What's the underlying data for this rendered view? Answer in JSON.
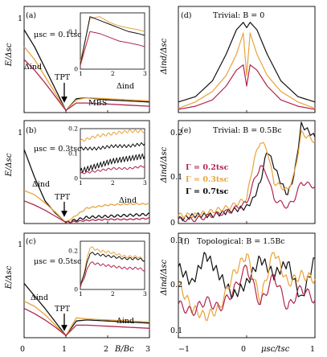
{
  "colors": {
    "black": "#111111",
    "red": "#b0264e",
    "orange": "#e8a33a"
  },
  "left_panels": [
    {
      "label": "(a)",
      "mu": "μsc = 0.1tsc",
      "ylabel": "E/Δsc",
      "ymax": 1.0,
      "delta_label": "Δind",
      "delta_label2": "Δind",
      "mbs_label": "MBS",
      "tpt_label": "TPT",
      "inset_ylim": [
        0,
        0.15
      ],
      "inset_yticks": [
        "0",
        "0.1"
      ],
      "inset_xticks": [
        "1",
        "2",
        "3"
      ],
      "inset": {
        "x": [
          1.0,
          1.3,
          1.6,
          1.9,
          2.2,
          2.5,
          2.8,
          3.0
        ],
        "black": [
          0.01,
          0.14,
          0.13,
          0.12,
          0.11,
          0.1,
          0.095,
          0.09
        ],
        "orange": [
          0.02,
          0.135,
          0.14,
          0.125,
          0.115,
          0.11,
          0.105,
          0.1
        ],
        "red": [
          0.01,
          0.1,
          0.095,
          0.085,
          0.075,
          0.07,
          0.065,
          0.06
        ]
      }
    },
    {
      "label": "(b)",
      "mu": "μsc = 0.3tsc",
      "ylabel": "E/Δsc",
      "ymax": 1.0,
      "delta_label": "Δind",
      "delta_label2": "Δind",
      "mbs_label": "",
      "tpt_label": "TPT",
      "inset_ylim": [
        0,
        0.2
      ],
      "inset_yticks": [
        "0",
        "0.1",
        "0.2"
      ],
      "inset_xticks": [
        "1",
        "2",
        "3"
      ],
      "inset": {
        "x": [
          1.0,
          1.5,
          2.0,
          2.5,
          3.0
        ],
        "black_hi": [
          0.12,
          0.12,
          0.13,
          0.13,
          0.14
        ],
        "black_lo": [
          0.03,
          0.05,
          0.07,
          0.08,
          0.09
        ],
        "orange": [
          0.15,
          0.17,
          0.18,
          0.19,
          0.19
        ],
        "red": [
          0.02,
          0.03,
          0.04,
          0.04,
          0.05
        ]
      }
    },
    {
      "label": "(c)",
      "mu": "μsc = 0.5tsc",
      "ylabel": "E/Δsc",
      "ymax": 1.0,
      "delta_label": "Δind",
      "delta_label2": "Δind",
      "mbs_label": "",
      "tpt_label": "TPT",
      "inset_ylim": [
        0,
        0.25
      ],
      "inset_yticks": [
        "0",
        "0.2"
      ],
      "inset_xticks": [
        "1",
        "2",
        "3"
      ],
      "inset": {
        "x": [
          1.0,
          1.3,
          1.6,
          2.0,
          2.4,
          2.8,
          3.0
        ],
        "black": [
          0.01,
          0.19,
          0.18,
          0.17,
          0.16,
          0.16,
          0.15
        ],
        "orange": [
          0.01,
          0.22,
          0.2,
          0.19,
          0.17,
          0.17,
          0.15
        ],
        "red": [
          0.01,
          0.14,
          0.13,
          0.12,
          0.11,
          0.11,
          0.1
        ]
      }
    }
  ],
  "left_axis": {
    "xticks": [
      "0",
      "1",
      "2",
      "3"
    ],
    "xlabel": "B/Bc",
    "yticks": [
      "0",
      "1"
    ]
  },
  "right_panels": [
    {
      "label": "(d)",
      "title": "Trivial: B = 0",
      "ylabel": "Δind/Δsc",
      "yticks": [],
      "legend": []
    },
    {
      "label": "(e)",
      "title": "Trivial: B = 0.5Bc",
      "ylabel": "Δind/Δsc",
      "yticks": [
        "0.2",
        "0.1",
        "0"
      ],
      "legend": [
        "Γ = 0.2tsc",
        "Γ = 0.3tsc",
        "Γ = 0.7tsc"
      ]
    },
    {
      "label": "(f)",
      "title": "Topological: B = 1.5Bc",
      "ylabel": "Δind/Δsc",
      "yticks": [
        "0.3",
        "0.2",
        "0.1"
      ],
      "legend": []
    }
  ],
  "right_axis": {
    "xticks": [
      "−1",
      "0",
      "1"
    ],
    "xlabel": "μsc/tsc"
  },
  "chart_data": [
    {
      "type": "line",
      "title": "(a) μsc = 0.1tsc",
      "xlabel": "B/Bc",
      "ylabel": "E/Δsc",
      "xlim": [
        0,
        3
      ],
      "ylim": [
        0,
        1
      ],
      "x": [
        0,
        0.25,
        0.5,
        0.75,
        1.0,
        1.25,
        1.5,
        2.0,
        2.5,
        3.0
      ],
      "series": [
        {
          "name": "black",
          "values": [
            0.78,
            0.62,
            0.42,
            0.22,
            0.02,
            0.13,
            0.14,
            0.12,
            0.11,
            0.1
          ]
        },
        {
          "name": "orange",
          "values": [
            0.62,
            0.5,
            0.34,
            0.18,
            0.02,
            0.12,
            0.14,
            0.13,
            0.12,
            0.11
          ]
        },
        {
          "name": "red",
          "values": [
            0.5,
            0.4,
            0.28,
            0.15,
            0.02,
            0.09,
            0.09,
            0.08,
            0.07,
            0.06
          ]
        }
      ]
    },
    {
      "type": "line",
      "title": "(b) μsc = 0.3tsc",
      "xlabel": "B/Bc",
      "ylabel": "E/Δsc",
      "xlim": [
        0,
        3
      ],
      "ylim": [
        0,
        1
      ],
      "x": [
        0,
        0.25,
        0.5,
        0.75,
        1.0,
        1.5,
        2.0,
        2.5,
        3.0
      ],
      "series": [
        {
          "name": "black",
          "values": [
            0.72,
            0.45,
            0.22,
            0.1,
            0.01,
            0.06,
            0.07,
            0.08,
            0.09
          ]
        },
        {
          "name": "orange",
          "values": [
            0.32,
            0.28,
            0.2,
            0.11,
            0.01,
            0.15,
            0.18,
            0.19,
            0.19
          ]
        },
        {
          "name": "red",
          "values": [
            0.22,
            0.18,
            0.13,
            0.07,
            0.01,
            0.03,
            0.04,
            0.04,
            0.05
          ]
        }
      ]
    },
    {
      "type": "line",
      "title": "(c) μsc = 0.5tsc",
      "xlabel": "B/Bc",
      "ylabel": "E/Δsc",
      "xlim": [
        0,
        3
      ],
      "ylim": [
        0,
        1
      ],
      "x": [
        0,
        0.25,
        0.5,
        0.75,
        1.0,
        1.25,
        1.5,
        2.0,
        2.5,
        3.0
      ],
      "series": [
        {
          "name": "black",
          "values": [
            0.52,
            0.4,
            0.28,
            0.15,
            0.02,
            0.16,
            0.17,
            0.16,
            0.15,
            0.14
          ]
        },
        {
          "name": "orange",
          "values": [
            0.35,
            0.3,
            0.22,
            0.12,
            0.02,
            0.19,
            0.18,
            0.17,
            0.16,
            0.15
          ]
        },
        {
          "name": "red",
          "values": [
            0.28,
            0.23,
            0.17,
            0.1,
            0.02,
            0.12,
            0.12,
            0.11,
            0.1,
            0.09
          ]
        }
      ]
    },
    {
      "type": "line",
      "title": "(d) Trivial: B = 0",
      "xlabel": "μsc/tsc",
      "ylabel": "Δind/Δsc",
      "xlim": [
        -1,
        1
      ],
      "ylim": [
        0,
        1
      ],
      "x": [
        -1.0,
        -0.75,
        -0.5,
        -0.3,
        -0.15,
        -0.05,
        0.0,
        0.05,
        0.15,
        0.3,
        0.5,
        0.75,
        1.0
      ],
      "series": [
        {
          "name": "Γ = 0.7tsc",
          "values": [
            0.1,
            0.15,
            0.3,
            0.55,
            0.78,
            0.85,
            0.8,
            0.85,
            0.78,
            0.55,
            0.3,
            0.15,
            0.1
          ]
        },
        {
          "name": "Γ = 0.3tsc",
          "values": [
            0.04,
            0.1,
            0.2,
            0.35,
            0.55,
            0.75,
            0.35,
            0.75,
            0.55,
            0.35,
            0.2,
            0.1,
            0.04
          ]
        },
        {
          "name": "Γ = 0.2tsc",
          "values": [
            0.03,
            0.06,
            0.12,
            0.25,
            0.4,
            0.45,
            0.25,
            0.45,
            0.4,
            0.25,
            0.12,
            0.06,
            0.03
          ]
        }
      ]
    },
    {
      "type": "line",
      "title": "(e) Trivial: B = 0.5Bc",
      "xlabel": "μsc/tsc",
      "ylabel": "Δind/Δsc",
      "xlim": [
        -1,
        1
      ],
      "ylim": [
        0,
        0.25
      ],
      "x": [
        -1.0,
        -0.75,
        -0.5,
        -0.25,
        0.0,
        0.1,
        0.2,
        0.3,
        0.4,
        0.5,
        0.6,
        0.7,
        0.8,
        1.0
      ],
      "series": [
        {
          "name": "Γ = 0.7tsc",
          "values": [
            0.01,
            0.02,
            0.02,
            0.03,
            0.04,
            0.06,
            0.1,
            0.18,
            0.14,
            0.1,
            0.07,
            0.12,
            0.24,
            0.21
          ]
        },
        {
          "name": "Γ = 0.3tsc",
          "values": [
            0.02,
            0.02,
            0.03,
            0.04,
            0.06,
            0.15,
            0.2,
            0.18,
            0.1,
            0.09,
            0.08,
            0.12,
            0.22,
            0.2
          ]
        },
        {
          "name": "Γ = 0.2tsc",
          "values": [
            0.01,
            0.01,
            0.02,
            0.03,
            0.05,
            0.1,
            0.14,
            0.12,
            0.06,
            0.05,
            0.04,
            0.06,
            0.1,
            0.09
          ]
        }
      ]
    },
    {
      "type": "line",
      "title": "(f) Topological: B = 1.5Bc",
      "xlabel": "μsc/tsc",
      "ylabel": "Δind/Δsc",
      "xlim": [
        -1,
        1
      ],
      "ylim": [
        0.05,
        0.3
      ],
      "x": [
        -1.0,
        -0.8,
        -0.6,
        -0.4,
        -0.2,
        0.0,
        0.2,
        0.4,
        0.6,
        0.8,
        1.0
      ],
      "series": [
        {
          "name": "Γ = 0.7tsc",
          "values": [
            0.22,
            0.18,
            0.25,
            0.2,
            0.15,
            0.18,
            0.24,
            0.2,
            0.23,
            0.14,
            0.24
          ]
        },
        {
          "name": "Γ = 0.3tsc",
          "values": [
            0.18,
            0.12,
            0.1,
            0.12,
            0.2,
            0.25,
            0.14,
            0.26,
            0.18,
            0.2,
            0.19
          ]
        },
        {
          "name": "Γ = 0.2tsc",
          "values": [
            0.13,
            0.11,
            0.14,
            0.12,
            0.16,
            0.22,
            0.13,
            0.2,
            0.12,
            0.17,
            0.14
          ]
        }
      ]
    }
  ]
}
